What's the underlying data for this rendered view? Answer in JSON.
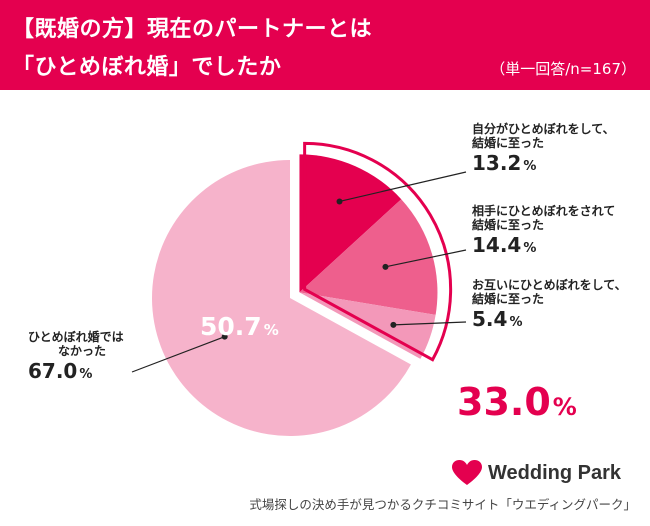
{
  "header": {
    "title_line1": "【既婚の方】現在のパートナーとは",
    "title_line2": "「ひとめぼれ婚」でしたか",
    "subtitle": "（単一回答/n=167）"
  },
  "colors": {
    "brand": "#e4004f",
    "slice_self": "#e4004f",
    "slice_partner": "#ee5f8d",
    "slice_mutual": "#f398b9",
    "slice_not": "#f6b3cb",
    "leader": "#222222"
  },
  "chart_data": {
    "type": "pie",
    "title": "【既婚の方】現在のパートナーとは「ひとめぼれ婚」でしたか",
    "subtitle": "（単一回答/n=167）",
    "unit": "%",
    "slices": [
      {
        "label_line1": "自分がひとめぼれをして、",
        "label_line2": "結婚に至った",
        "value": 13.2,
        "display": "13.2",
        "exploded": true
      },
      {
        "label_line1": "相手にひとめぼれをされて",
        "label_line2": "結婚に至った",
        "value": 14.4,
        "display": "14.4",
        "exploded": true
      },
      {
        "label_line1": "お互いにひとめぼれをして、",
        "label_line2": "結婚に至った",
        "value": 5.4,
        "display": "5.4",
        "exploded": true
      },
      {
        "label_line1": "ひとめぼれ婚では",
        "label_line2": "なかった",
        "value": 67.0,
        "display": "67.0",
        "exploded": false
      }
    ],
    "inner_label": {
      "value": 50.7,
      "display": "50.7"
    },
    "exploded_total": {
      "value": 33.0,
      "display": "33.0"
    }
  },
  "branding": {
    "logo_icon": "heart-icon",
    "logo_text": "Wedding Park"
  },
  "footer": {
    "caption": "式場探しの決め手が見つかるクチコミサイト「ウエディングパーク」"
  }
}
